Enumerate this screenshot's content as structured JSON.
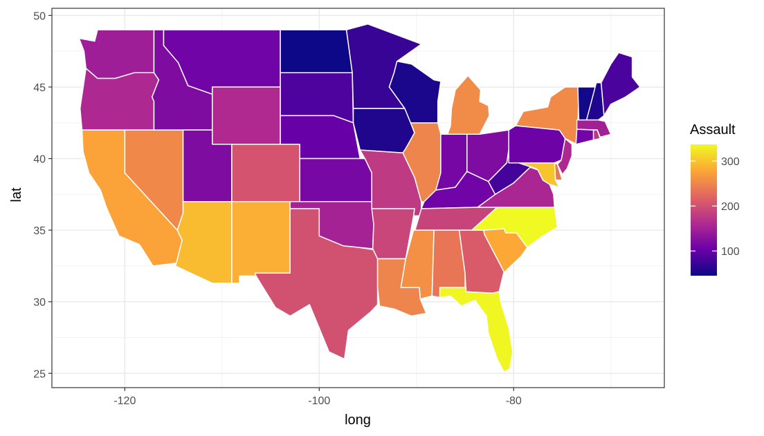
{
  "chart_data": {
    "type": "choropleth",
    "title": "",
    "xlabel": "long",
    "ylabel": "lat",
    "xlim": [
      -127.5,
      -64.5
    ],
    "ylim": [
      24,
      50.5
    ],
    "x_ticks": [
      -120,
      -100,
      -80
    ],
    "y_ticks": [
      25,
      30,
      35,
      40,
      45,
      50
    ],
    "grid": true,
    "legend": {
      "title": "Assault",
      "placement": "right",
      "range": [
        45,
        337
      ],
      "breaks": [
        100,
        200,
        300
      ]
    },
    "colors": [
      "#0d0887",
      "#6a00a8",
      "#b12a90",
      "#e16462",
      "#fca636",
      "#f0f921"
    ],
    "states": [
      {
        "name": "Washington",
        "assault": 145
      },
      {
        "name": "Oregon",
        "assault": 159
      },
      {
        "name": "California",
        "assault": 276
      },
      {
        "name": "Nevada",
        "assault": 252
      },
      {
        "name": "Idaho",
        "assault": 120
      },
      {
        "name": "Montana",
        "assault": 109
      },
      {
        "name": "Wyoming",
        "assault": 161
      },
      {
        "name": "Utah",
        "assault": 120
      },
      {
        "name": "Arizona",
        "assault": 294
      },
      {
        "name": "Colorado",
        "assault": 204
      },
      {
        "name": "New Mexico",
        "assault": 285
      },
      {
        "name": "North Dakota",
        "assault": 45
      },
      {
        "name": "South Dakota",
        "assault": 86
      },
      {
        "name": "Nebraska",
        "assault": 102
      },
      {
        "name": "Kansas",
        "assault": 115
      },
      {
        "name": "Oklahoma",
        "assault": 151
      },
      {
        "name": "Texas",
        "assault": 201
      },
      {
        "name": "Minnesota",
        "assault": 72
      },
      {
        "name": "Iowa",
        "assault": 56
      },
      {
        "name": "Missouri",
        "assault": 178
      },
      {
        "name": "Arkansas",
        "assault": 190
      },
      {
        "name": "Louisiana",
        "assault": 249
      },
      {
        "name": "Wisconsin",
        "assault": 53
      },
      {
        "name": "Illinois",
        "assault": 249
      },
      {
        "name": "Michigan",
        "assault": 255
      },
      {
        "name": "Indiana",
        "assault": 113
      },
      {
        "name": "Ohio",
        "assault": 120
      },
      {
        "name": "Kentucky",
        "assault": 109
      },
      {
        "name": "Tennessee",
        "assault": 188
      },
      {
        "name": "Mississippi",
        "assault": 259
      },
      {
        "name": "Alabama",
        "assault": 236
      },
      {
        "name": "Georgia",
        "assault": 211
      },
      {
        "name": "Florida",
        "assault": 335
      },
      {
        "name": "South Carolina",
        "assault": 279
      },
      {
        "name": "North Carolina",
        "assault": 337
      },
      {
        "name": "Virginia",
        "assault": 156
      },
      {
        "name": "West Virginia",
        "assault": 81
      },
      {
        "name": "Pennsylvania",
        "assault": 106
      },
      {
        "name": "New York",
        "assault": 254
      },
      {
        "name": "Vermont",
        "assault": 48
      },
      {
        "name": "New Hampshire",
        "assault": 57
      },
      {
        "name": "Maine",
        "assault": 83
      },
      {
        "name": "Massachusetts",
        "assault": 149
      },
      {
        "name": "Rhode Island",
        "assault": 174
      },
      {
        "name": "Connecticut",
        "assault": 110
      },
      {
        "name": "New Jersey",
        "assault": 159
      },
      {
        "name": "Delaware",
        "assault": 238
      },
      {
        "name": "Maryland",
        "assault": 300
      }
    ]
  }
}
